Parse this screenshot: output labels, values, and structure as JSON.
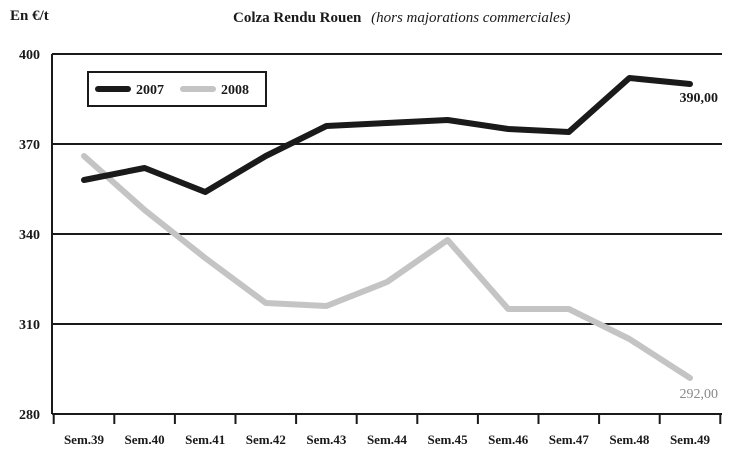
{
  "header": {
    "unit": "En €/t",
    "title_main": "Colza Rendu Rouen",
    "title_sub": "(hors majorations commerciales)"
  },
  "chart_data": {
    "type": "line",
    "title": "Colza Rendu Rouen (hors majorations commerciales)",
    "ylabel": "En €/t",
    "ylim": [
      280,
      400
    ],
    "yticks": [
      280,
      310,
      340,
      370,
      400
    ],
    "grid": "horizontal",
    "legend_position": "top-left",
    "categories": [
      "Sem.39",
      "Sem.40",
      "Sem.41",
      "Sem.42",
      "Sem.43",
      "Sem.44",
      "Sem.45",
      "Sem.46",
      "Sem.47",
      "Sem.48",
      "Sem.49"
    ],
    "series": [
      {
        "name": "2007",
        "color": "#1a1a1a",
        "values": [
          358,
          362,
          354,
          366,
          376,
          377,
          378,
          375,
          374,
          392,
          390
        ],
        "end_label": "390,00"
      },
      {
        "name": "2008",
        "color": "#c4c4c4",
        "values": [
          366,
          348,
          332,
          317,
          316,
          324,
          338,
          315,
          315,
          305,
          292
        ],
        "end_label": "292,00"
      }
    ]
  }
}
